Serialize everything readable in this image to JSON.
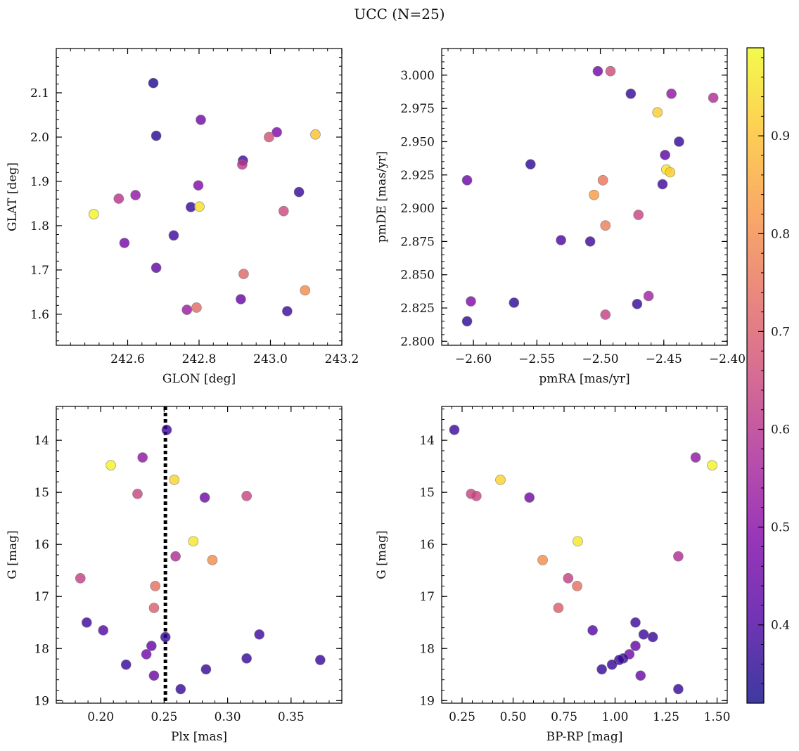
{
  "title": "UCC (N=25)",
  "colors": {
    "edge": "#7f7f7f",
    "dashed_line": "#000000"
  },
  "colorbar": {
    "colormap": "plasma",
    "range": [
      0.32,
      0.99
    ],
    "ticks": [
      0.4,
      0.5,
      0.6,
      0.7,
      0.8,
      0.9
    ],
    "tick_labels": [
      "0.4",
      "0.5",
      "0.6",
      "0.7",
      "0.8",
      "0.9"
    ]
  },
  "chart_data": [
    {
      "type": "scatter",
      "name": "glon-glat",
      "xlabel": "GLON [deg]",
      "ylabel": "GLAT [deg]",
      "xlim": [
        242.4,
        243.2
      ],
      "ylim": [
        1.53,
        2.2
      ],
      "y_inverted": false,
      "xticks": [
        242.6,
        242.8,
        243.0,
        243.2
      ],
      "xtick_labels": [
        "242.6",
        "242.8",
        "243.0",
        "243.2"
      ],
      "yticks": [
        1.6,
        1.7,
        1.8,
        1.9,
        2.0,
        2.1
      ],
      "ytick_labels": [
        "1.6",
        "1.7",
        "1.8",
        "1.9",
        "2.0",
        "2.1"
      ],
      "points": [
        {
          "x": 242.672,
          "y": 2.122,
          "c": 0.34
        },
        {
          "x": 242.68,
          "y": 2.003,
          "c": 0.35
        },
        {
          "x": 242.805,
          "y": 2.039,
          "c": 0.46
        },
        {
          "x": 242.923,
          "y": 1.947,
          "c": 0.38
        },
        {
          "x": 242.921,
          "y": 1.938,
          "c": 0.61
        },
        {
          "x": 243.018,
          "y": 2.011,
          "c": 0.48
        },
        {
          "x": 242.996,
          "y": 2.0,
          "c": 0.67
        },
        {
          "x": 243.126,
          "y": 2.006,
          "c": 0.9
        },
        {
          "x": 242.505,
          "y": 1.826,
          "c": 0.98
        },
        {
          "x": 242.575,
          "y": 1.861,
          "c": 0.6
        },
        {
          "x": 242.622,
          "y": 1.869,
          "c": 0.52
        },
        {
          "x": 242.798,
          "y": 1.891,
          "c": 0.49
        },
        {
          "x": 242.777,
          "y": 1.842,
          "c": 0.37
        },
        {
          "x": 242.801,
          "y": 1.843,
          "c": 0.95
        },
        {
          "x": 243.08,
          "y": 1.876,
          "c": 0.37
        },
        {
          "x": 243.037,
          "y": 1.833,
          "c": 0.65
        },
        {
          "x": 242.729,
          "y": 1.778,
          "c": 0.38
        },
        {
          "x": 242.591,
          "y": 1.761,
          "c": 0.47
        },
        {
          "x": 242.68,
          "y": 1.705,
          "c": 0.43
        },
        {
          "x": 242.925,
          "y": 1.691,
          "c": 0.72
        },
        {
          "x": 243.097,
          "y": 1.654,
          "c": 0.8
        },
        {
          "x": 242.917,
          "y": 1.634,
          "c": 0.44
        },
        {
          "x": 242.793,
          "y": 1.615,
          "c": 0.73
        },
        {
          "x": 242.766,
          "y": 1.61,
          "c": 0.54
        },
        {
          "x": 243.047,
          "y": 1.607,
          "c": 0.38
        }
      ]
    },
    {
      "type": "scatter",
      "name": "pm",
      "xlabel": "pmRA [mas/yr]",
      "ylabel": "pmDE [mas/yr]",
      "xlim": [
        -2.625,
        -2.4
      ],
      "ylim": [
        2.797,
        3.02
      ],
      "y_inverted": false,
      "xticks": [
        -2.6,
        -2.55,
        -2.5,
        -2.45,
        -2.4
      ],
      "xtick_labels": [
        "−2.60",
        "−2.55",
        "−2.50",
        "−2.45",
        "−2.40"
      ],
      "yticks": [
        2.8,
        2.825,
        2.85,
        2.875,
        2.9,
        2.925,
        2.95,
        2.975,
        3.0
      ],
      "ytick_labels": [
        "2.800",
        "2.825",
        "2.850",
        "2.875",
        "2.900",
        "2.925",
        "2.950",
        "2.975",
        "3.000"
      ],
      "points": [
        {
          "x": -2.502,
          "y": 3.003,
          "c": 0.46
        },
        {
          "x": -2.492,
          "y": 3.003,
          "c": 0.66
        },
        {
          "x": -2.476,
          "y": 2.986,
          "c": 0.37
        },
        {
          "x": -2.444,
          "y": 2.986,
          "c": 0.52
        },
        {
          "x": -2.411,
          "y": 2.983,
          "c": 0.58
        },
        {
          "x": -2.455,
          "y": 2.972,
          "c": 0.92
        },
        {
          "x": -2.438,
          "y": 2.95,
          "c": 0.37
        },
        {
          "x": -2.449,
          "y": 2.94,
          "c": 0.42
        },
        {
          "x": -2.555,
          "y": 2.933,
          "c": 0.36
        },
        {
          "x": -2.448,
          "y": 2.929,
          "c": 0.96
        },
        {
          "x": -2.445,
          "y": 2.927,
          "c": 0.92
        },
        {
          "x": -2.605,
          "y": 2.921,
          "c": 0.45
        },
        {
          "x": -2.498,
          "y": 2.921,
          "c": 0.75
        },
        {
          "x": -2.451,
          "y": 2.918,
          "c": 0.38
        },
        {
          "x": -2.505,
          "y": 2.91,
          "c": 0.83
        },
        {
          "x": -2.47,
          "y": 2.895,
          "c": 0.64
        },
        {
          "x": -2.496,
          "y": 2.887,
          "c": 0.77
        },
        {
          "x": -2.531,
          "y": 2.876,
          "c": 0.4
        },
        {
          "x": -2.508,
          "y": 2.875,
          "c": 0.38
        },
        {
          "x": -2.462,
          "y": 2.834,
          "c": 0.55
        },
        {
          "x": -2.602,
          "y": 2.83,
          "c": 0.49
        },
        {
          "x": -2.568,
          "y": 2.829,
          "c": 0.36
        },
        {
          "x": -2.471,
          "y": 2.828,
          "c": 0.37
        },
        {
          "x": -2.496,
          "y": 2.82,
          "c": 0.63
        },
        {
          "x": -2.605,
          "y": 2.815,
          "c": 0.36
        }
      ]
    },
    {
      "type": "scatter",
      "name": "plx-g",
      "xlabel": "Plx [mas]",
      "ylabel": "G [mag]",
      "xlim": [
        0.165,
        0.39
      ],
      "ylim": [
        13.35,
        19.05
      ],
      "y_inverted": true,
      "vline": 0.251,
      "xticks": [
        0.2,
        0.25,
        0.3,
        0.35
      ],
      "xtick_labels": [
        "0.20",
        "0.25",
        "0.30",
        "0.35"
      ],
      "yticks": [
        14,
        15,
        16,
        17,
        18,
        19
      ],
      "ytick_labels": [
        "14",
        "15",
        "16",
        "17",
        "18",
        "19"
      ],
      "points": [
        {
          "x": 0.252,
          "y": 13.8,
          "c": 0.38
        },
        {
          "x": 0.208,
          "y": 14.48,
          "c": 0.98
        },
        {
          "x": 0.233,
          "y": 14.33,
          "c": 0.52
        },
        {
          "x": 0.258,
          "y": 14.76,
          "c": 0.93
        },
        {
          "x": 0.229,
          "y": 15.03,
          "c": 0.64
        },
        {
          "x": 0.282,
          "y": 15.1,
          "c": 0.46
        },
        {
          "x": 0.315,
          "y": 15.07,
          "c": 0.64
        },
        {
          "x": 0.273,
          "y": 15.94,
          "c": 0.96
        },
        {
          "x": 0.259,
          "y": 16.23,
          "c": 0.58
        },
        {
          "x": 0.288,
          "y": 16.3,
          "c": 0.8
        },
        {
          "x": 0.184,
          "y": 16.65,
          "c": 0.63
        },
        {
          "x": 0.243,
          "y": 16.8,
          "c": 0.74
        },
        {
          "x": 0.242,
          "y": 17.22,
          "c": 0.7
        },
        {
          "x": 0.189,
          "y": 17.5,
          "c": 0.38
        },
        {
          "x": 0.202,
          "y": 17.65,
          "c": 0.41
        },
        {
          "x": 0.325,
          "y": 17.73,
          "c": 0.38
        },
        {
          "x": 0.251,
          "y": 17.78,
          "c": 0.37
        },
        {
          "x": 0.24,
          "y": 17.95,
          "c": 0.44
        },
        {
          "x": 0.236,
          "y": 18.11,
          "c": 0.46
        },
        {
          "x": 0.315,
          "y": 18.19,
          "c": 0.37
        },
        {
          "x": 0.373,
          "y": 18.22,
          "c": 0.37
        },
        {
          "x": 0.22,
          "y": 18.31,
          "c": 0.37
        },
        {
          "x": 0.283,
          "y": 18.4,
          "c": 0.37
        },
        {
          "x": 0.242,
          "y": 18.52,
          "c": 0.45
        },
        {
          "x": 0.263,
          "y": 18.78,
          "c": 0.37
        }
      ]
    },
    {
      "type": "scatter",
      "name": "bprp-g",
      "xlabel": "BP-RP [mag]",
      "ylabel": "G [mag]",
      "xlim": [
        0.15,
        1.55
      ],
      "ylim": [
        13.35,
        19.05
      ],
      "y_inverted": true,
      "xticks": [
        0.25,
        0.5,
        0.75,
        1.0,
        1.25,
        1.5
      ],
      "xtick_labels": [
        "0.25",
        "0.50",
        "0.75",
        "1.00",
        "1.25",
        "1.50"
      ],
      "yticks": [
        14,
        15,
        16,
        17,
        18,
        19
      ],
      "ytick_labels": [
        "14",
        "15",
        "16",
        "17",
        "18",
        "19"
      ],
      "points": [
        {
          "x": 0.212,
          "y": 13.8,
          "c": 0.38
        },
        {
          "x": 1.395,
          "y": 14.33,
          "c": 0.52
        },
        {
          "x": 1.476,
          "y": 14.48,
          "c": 0.98
        },
        {
          "x": 0.438,
          "y": 14.76,
          "c": 0.93
        },
        {
          "x": 0.294,
          "y": 15.03,
          "c": 0.64
        },
        {
          "x": 0.32,
          "y": 15.07,
          "c": 0.64
        },
        {
          "x": 0.58,
          "y": 15.1,
          "c": 0.46
        },
        {
          "x": 0.817,
          "y": 15.94,
          "c": 0.96
        },
        {
          "x": 1.31,
          "y": 16.23,
          "c": 0.58
        },
        {
          "x": 0.645,
          "y": 16.3,
          "c": 0.8
        },
        {
          "x": 0.77,
          "y": 16.65,
          "c": 0.63
        },
        {
          "x": 0.814,
          "y": 16.8,
          "c": 0.74
        },
        {
          "x": 0.722,
          "y": 17.22,
          "c": 0.7
        },
        {
          "x": 1.1,
          "y": 17.5,
          "c": 0.38
        },
        {
          "x": 0.89,
          "y": 17.65,
          "c": 0.41
        },
        {
          "x": 1.14,
          "y": 17.73,
          "c": 0.38
        },
        {
          "x": 1.185,
          "y": 17.78,
          "c": 0.37
        },
        {
          "x": 1.1,
          "y": 17.95,
          "c": 0.44
        },
        {
          "x": 1.07,
          "y": 18.11,
          "c": 0.46
        },
        {
          "x": 1.04,
          "y": 18.19,
          "c": 0.37
        },
        {
          "x": 1.02,
          "y": 18.22,
          "c": 0.37
        },
        {
          "x": 0.985,
          "y": 18.31,
          "c": 0.37
        },
        {
          "x": 0.935,
          "y": 18.4,
          "c": 0.37
        },
        {
          "x": 1.125,
          "y": 18.52,
          "c": 0.45
        },
        {
          "x": 1.31,
          "y": 18.78,
          "c": 0.37
        }
      ]
    }
  ]
}
